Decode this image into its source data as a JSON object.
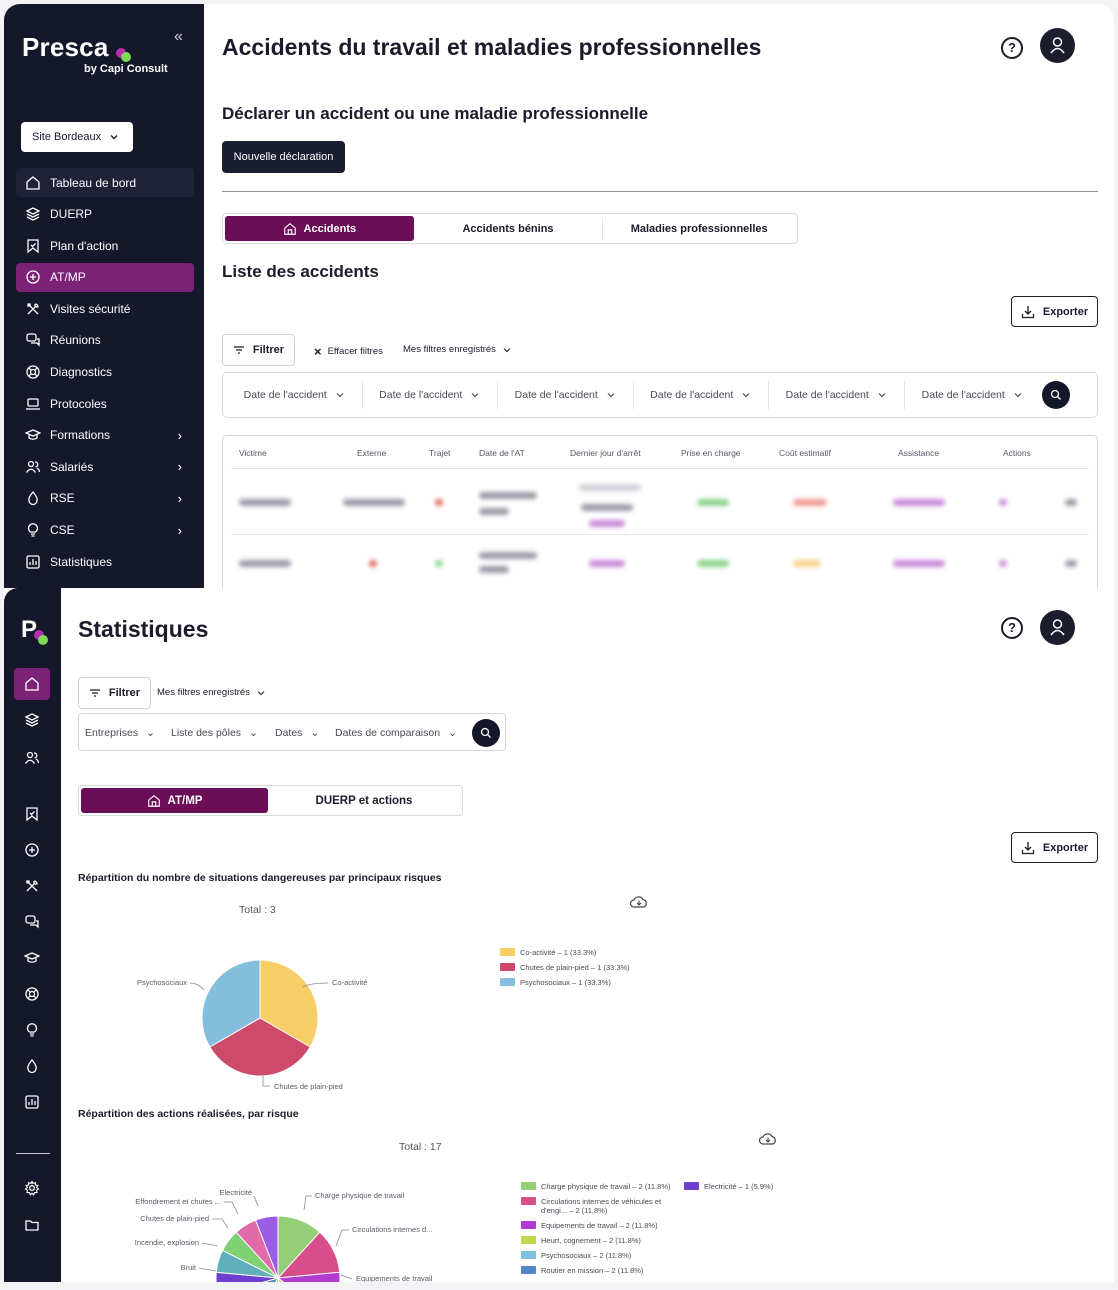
{
  "top": {
    "sidebar": {
      "brand": "Presca",
      "brand_sub": "by Capi Consult",
      "site_select": "Site Bordeaux",
      "items": [
        {
          "label": "Tableau de bord",
          "icon": "home-icon"
        },
        {
          "label": "DUERP",
          "icon": "layers-icon"
        },
        {
          "label": "Plan d'action",
          "icon": "bookmark-icon"
        },
        {
          "label": "AT/MP",
          "icon": "medical-plus-icon",
          "active": true
        },
        {
          "label": "Visites sécurité",
          "icon": "tools-icon"
        },
        {
          "label": "Réunions",
          "icon": "chat-icon"
        },
        {
          "label": "Diagnostics",
          "icon": "lifebuoy-icon"
        },
        {
          "label": "Protocoles",
          "icon": "laptop-icon"
        },
        {
          "label": "Formations",
          "icon": "graduation-cap-icon",
          "chevron": true
        },
        {
          "label": "Salariés",
          "icon": "users-icon",
          "chevron": true
        },
        {
          "label": "RSE",
          "icon": "drop-icon",
          "chevron": true
        },
        {
          "label": "CSE",
          "icon": "lightbulb-icon",
          "chevron": true
        },
        {
          "label": "Statistiques",
          "icon": "chart-icon"
        }
      ]
    },
    "page_title": "Accidents du travail et maladies professionnelles",
    "declare_title": "Déclarer un accident ou une maladie professionnelle",
    "new_declaration": "Nouvelle déclaration",
    "tabs": [
      "Accidents",
      "Accidents bénins",
      "Maladies professionnelles"
    ],
    "list_title": "Liste des accidents",
    "export": "Exporter",
    "filter": "Filtrer",
    "clear_filters": "Effacer filtres",
    "saved_filters": "Mes filtres enregistrés",
    "date_filters": [
      "Date de l'accident",
      "Date de l'accident",
      "Date de l'accident",
      "Date de l'accident",
      "Date de l'accident",
      "Date de l'accident"
    ],
    "table_headers": [
      "Victime",
      "Externe",
      "Trajet",
      "Date de l'AT",
      "Dernier jour d'arrêt",
      "Prise en charge",
      "Coût estimatif",
      "Assistance",
      "Actions"
    ]
  },
  "bottom": {
    "brand_letter": "P",
    "page_title": "Statistiques",
    "filter": "Filtrer",
    "saved_filters": "Mes filtres enregistrés",
    "filter_options": [
      "Entreprises",
      "Liste des pôles",
      "Dates",
      "Dates de comparaison"
    ],
    "tabs": [
      "AT/MP",
      "DUERP et actions"
    ],
    "export": "Exporter",
    "chart1": {
      "title": "Répartition du nombre de situations dangereuses par principaux risques",
      "total": "Total : 3",
      "labels": [
        "Co-activité",
        "Chutes de plain-pied",
        "Psychosociaux"
      ],
      "legend": [
        "Co-activité – 1 (33.3%)",
        "Chutes de plain-pied – 1 (33.3%)",
        "Psychosociaux – 1 (33.3%)"
      ]
    },
    "chart2": {
      "title": "Répartition des actions réalisées, par risque",
      "total": "Total : 17",
      "labels": [
        "Electricité",
        "Effondrement et chutes ...",
        "Chutes de plain-pied",
        "Incendie, explosion",
        "Bruit",
        "Charge physique de travail",
        "Circulations internes d...",
        "Equipements de travail"
      ],
      "legend": [
        "Charge physique de travail – 2 (11.8%)",
        "Circulations internes de véhicules et d'engi... – 2 (11.8%)",
        "Equipements de travail – 2 (11.8%)",
        "Heurt, cognement – 2 (11.8%)",
        "Psychosociaux – 2 (11.8%)",
        "Routier en mission – 2 (11.8%)",
        "Electricité – 1 (5.9%)"
      ]
    }
  },
  "chart_data": [
    {
      "type": "pie",
      "title": "Répartition du nombre de situations dangereuses par principaux risques",
      "categories": [
        "Co-activité",
        "Chutes de plain-pied",
        "Psychosociaux"
      ],
      "values": [
        1,
        1,
        1
      ],
      "colors": [
        "#f7cd68",
        "#cd4a6b",
        "#85bddc"
      ],
      "legend": "right"
    },
    {
      "type": "pie",
      "title": "Répartition des actions réalisées, par risque",
      "categories": [
        "Charge physique de travail",
        "Circulations internes de véhicules et d'engi...",
        "Equipements de travail",
        "Heurt, cognement",
        "Psychosociaux",
        "Routier en mission",
        "Electricité",
        "Bruit",
        "Incendie, explosion",
        "Chutes de plain-pied",
        "Effondrement et chutes ..."
      ],
      "values": [
        2,
        2,
        2,
        2,
        2,
        2,
        1,
        1,
        1,
        1,
        1
      ],
      "colors": [
        "#94cf78",
        "#d84e8a",
        "#b23bd0",
        "#c9d64a",
        "#7ec3dd",
        "#4f85c7",
        "#6c3fd0",
        "#5fb0b9",
        "#7fd174",
        "#e26aa8",
        "#9b5de5"
      ],
      "legend": "right"
    }
  ]
}
